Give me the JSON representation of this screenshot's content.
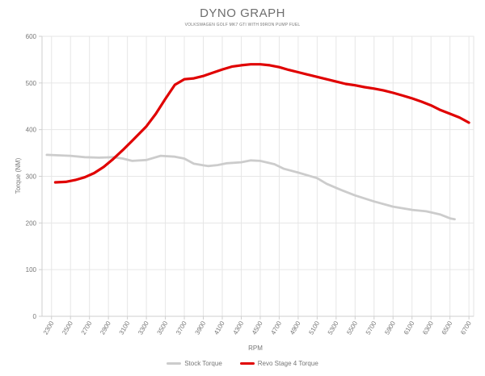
{
  "chart_data": {
    "type": "line",
    "title": "DYNO GRAPH",
    "subtitle": "VOLKSWAGEN GOLF MK7 GTI WITH 99RON PUMP FUEL",
    "xlabel": "RPM",
    "ylabel": "Torque (NM)",
    "xlim": [
      2200,
      6750
    ],
    "ylim": [
      0,
      600
    ],
    "x_ticks": [
      "2300",
      "2500",
      "2700",
      "2900",
      "3100",
      "3300",
      "3500",
      "3700",
      "3900",
      "4100",
      "4300",
      "4500",
      "4700",
      "4900",
      "5100",
      "5300",
      "5500",
      "5700",
      "5900",
      "6100",
      "6300",
      "6500",
      "6700"
    ],
    "y_ticks": [
      "0",
      "100",
      "200",
      "300",
      "400",
      "500",
      "600"
    ],
    "grid": true,
    "legend_position": "bottom",
    "series": [
      {
        "name": "Stock Torque",
        "color": "#cccccc",
        "x": [
          2250,
          2500,
          2650,
          2800,
          2950,
          3050,
          3150,
          3300,
          3450,
          3600,
          3700,
          3800,
          3950,
          4050,
          4150,
          4300,
          4400,
          4500,
          4650,
          4750,
          4900,
          5000,
          5100,
          5200,
          5350,
          5500,
          5700,
          5900,
          6100,
          6250,
          6400,
          6500,
          6550
        ],
        "y": [
          346,
          344,
          341,
          340,
          341,
          338,
          333,
          335,
          344,
          342,
          338,
          327,
          322,
          324,
          328,
          330,
          334,
          333,
          326,
          316,
          308,
          302,
          296,
          284,
          271,
          259,
          246,
          235,
          228,
          225,
          218,
          210,
          208
        ]
      },
      {
        "name": "Revo Stage 4 Torque",
        "color": "#e00000",
        "x": [
          2340,
          2450,
          2550,
          2650,
          2750,
          2850,
          2950,
          3050,
          3150,
          3300,
          3400,
          3500,
          3600,
          3700,
          3800,
          3900,
          4000,
          4100,
          4200,
          4300,
          4400,
          4500,
          4600,
          4700,
          4800,
          4900,
          5000,
          5100,
          5200,
          5300,
          5400,
          5500,
          5600,
          5700,
          5800,
          5900,
          6000,
          6100,
          6200,
          6300,
          6400,
          6500,
          6600,
          6700
        ],
        "y": [
          287,
          288,
          292,
          298,
          307,
          320,
          337,
          356,
          376,
          407,
          434,
          466,
          496,
          508,
          510,
          515,
          522,
          529,
          535,
          538,
          540,
          540,
          538,
          534,
          528,
          523,
          518,
          513,
          508,
          503,
          498,
          495,
          491,
          488,
          484,
          479,
          473,
          467,
          460,
          452,
          442,
          434,
          426,
          415
        ]
      }
    ]
  }
}
